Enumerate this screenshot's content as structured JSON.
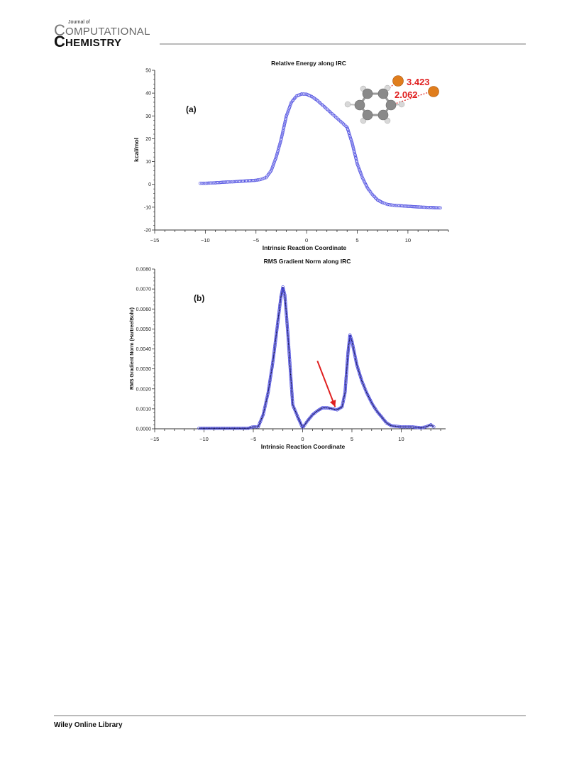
{
  "journal": {
    "logo_small": "Journal of",
    "logo_line1_initial": "C",
    "logo_line1_rest": "OMPUTATIONAL",
    "logo_line2_initial": "C",
    "logo_line2_rest": "HEMISTRY",
    "footer": "Wiley Online Library"
  },
  "colors": {
    "marker": "#4a4ae0",
    "line": "#000000",
    "arrow": "#e02020",
    "annotation": "#e02020",
    "atom_br": "#e07d1c",
    "atom_c": "#8a8a8a",
    "atom_h": "#d8d8d8"
  },
  "chart_data": [
    {
      "type": "scatter",
      "panel_label": "(a)",
      "title": "Relative Energy along IRC",
      "xlabel": "Intrinsic Reaction Coordinate",
      "ylabel": "kcal/mol",
      "xlim": [
        -15,
        14
      ],
      "ylim": [
        -20,
        50
      ],
      "xticks": [
        -15,
        -10,
        -5,
        0,
        5,
        10
      ],
      "yticks": [
        -20,
        -10,
        0,
        10,
        20,
        30,
        40,
        50
      ],
      "ytick_labels": [
        "-20",
        "-10",
        "0",
        "10",
        "20",
        "30",
        "40",
        "50"
      ],
      "grid": false,
      "inset_annotations": [
        "3.423",
        "2.062"
      ],
      "series": [
        {
          "x": [
            -10.5,
            -10,
            -9,
            -8,
            -7,
            -6,
            -5,
            -4.5,
            -4,
            -3.5,
            -3,
            -2.5,
            -2,
            -1.5,
            -1,
            -0.5,
            0,
            0.5,
            1,
            1.5,
            2,
            2.5,
            3,
            3.5,
            4,
            4.5,
            5,
            5.5,
            6,
            6.5,
            7,
            7.5,
            8,
            8.5,
            9,
            10,
            11,
            12,
            13.2
          ],
          "y": [
            0.5,
            0.5,
            0.7,
            1,
            1.2,
            1.5,
            1.8,
            2.2,
            3,
            6,
            12,
            20,
            30,
            36,
            38.7,
            39.6,
            39.5,
            38.5,
            37,
            35,
            33,
            31,
            29,
            27,
            25,
            18,
            9,
            3,
            -1.5,
            -4.5,
            -6.8,
            -8,
            -8.8,
            -9.1,
            -9.3,
            -9.6,
            -9.9,
            -10.1,
            -10.3
          ]
        }
      ]
    },
    {
      "type": "line",
      "panel_label": "(b)",
      "title": "RMS Gradient Norm along IRC",
      "xlabel": "Intrinsic Reaction Coordinate",
      "ylabel": "RMS Gradient Norm (Hartree/Bohr)",
      "xlim": [
        -15,
        14.5
      ],
      "ylim": [
        0,
        0.008
      ],
      "xticks": [
        -15,
        -10,
        -5,
        0,
        5,
        10
      ],
      "yticks": [
        0,
        0.001,
        0.002,
        0.003,
        0.004,
        0.005,
        0.006,
        0.007,
        0.008
      ],
      "ytick_labels": [
        "0.0000",
        "0.0010",
        "0.0020",
        "0.0030",
        "0.0040",
        "0.0050",
        "0.0060",
        "0.0070",
        "0.0080"
      ],
      "grid": false,
      "series": [
        {
          "x": [
            -10.5,
            -9,
            -8,
            -7,
            -6,
            -5.5,
            -5,
            -4.5,
            -4,
            -3.5,
            -3,
            -2.5,
            -2.2,
            -2,
            -1.8,
            -1.5,
            -1.2,
            -1,
            -0.5,
            0,
            0.5,
            1,
            1.5,
            2,
            2.5,
            3,
            3.5,
            4,
            4.3,
            4.6,
            4.8,
            5,
            5.5,
            6,
            6.5,
            7,
            7.5,
            8,
            8.5,
            9,
            10,
            11,
            12,
            12.5,
            13,
            13.3
          ],
          "y": [
            3e-05,
            3e-05,
            3e-05,
            3e-05,
            3e-05,
            3e-05,
            0.0001,
            0.0001,
            0.0007,
            0.0018,
            0.0034,
            0.0054,
            0.0066,
            0.0071,
            0.0067,
            0.0048,
            0.0026,
            0.0012,
            0.0006,
            5e-05,
            0.0004,
            0.0007,
            0.0009,
            0.00105,
            0.00105,
            0.001,
            0.00095,
            0.0011,
            0.0018,
            0.0038,
            0.0047,
            0.0044,
            0.0032,
            0.0024,
            0.0018,
            0.0013,
            0.0009,
            0.0006,
            0.0003,
            0.00015,
            0.0001,
            0.0001,
            5e-05,
            0.0001,
            0.0002,
            0.0001
          ]
        }
      ],
      "annotation": {
        "type": "arrow",
        "from": [
          1.5,
          0.0034
        ],
        "to": [
          3.3,
          0.0011
        ]
      }
    }
  ]
}
